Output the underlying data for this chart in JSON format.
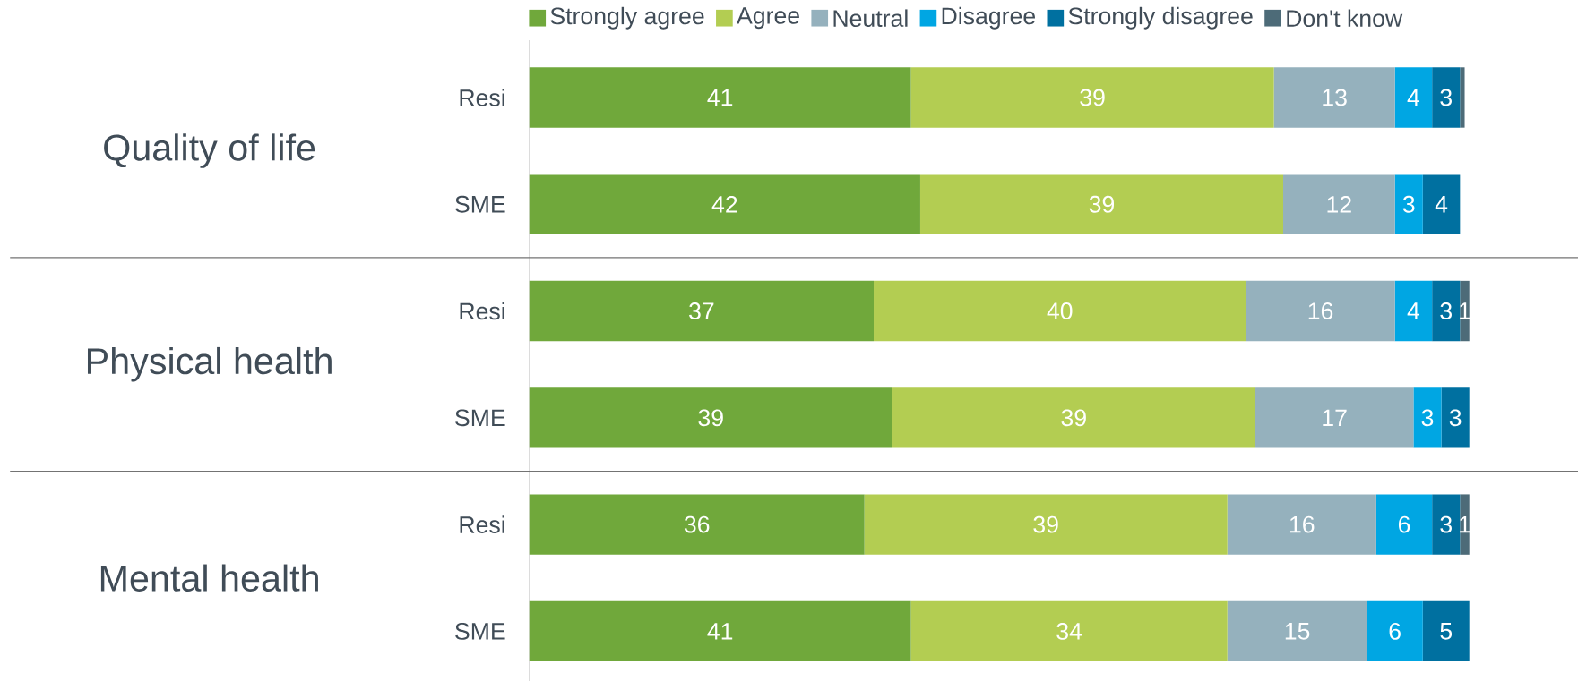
{
  "chart_data": {
    "type": "bar",
    "orientation": "horizontal",
    "stacked": true,
    "legend": "top",
    "tick_labels": "y",
    "categories": [
      "Resi",
      "SME",
      "Resi",
      "SME",
      "Resi",
      "SME"
    ],
    "annotations": [
      "Quality of life",
      "Physical health",
      "Mental health"
    ],
    "series": [
      {
        "name": "Strongly agree",
        "color": "#70a83b",
        "values": [
          41,
          42,
          37,
          39,
          36,
          41
        ],
        "value_labels": [
          "41",
          "42",
          "37",
          "39",
          "36",
          "41"
        ]
      },
      {
        "name": "Agree",
        "color": "#b3cd52",
        "values": [
          39,
          39,
          40,
          39,
          39,
          34
        ],
        "value_labels": [
          "39",
          "39",
          "40",
          "39",
          "39",
          "34"
        ]
      },
      {
        "name": "Neutral",
        "color": "#95b1bd",
        "values": [
          13,
          12,
          16,
          17,
          16,
          15
        ],
        "value_labels": [
          "13",
          "12",
          "16",
          "17",
          "16",
          "15"
        ]
      },
      {
        "name": "Disagree",
        "color": "#00a6e3",
        "values": [
          4,
          3,
          4,
          3,
          6,
          6
        ],
        "value_labels": [
          "4",
          "3",
          "4",
          "3",
          "6",
          "6"
        ]
      },
      {
        "name": "Strongly disagree",
        "color": "#0070a0",
        "values": [
          3,
          4,
          3,
          3,
          3,
          5
        ],
        "value_labels": [
          "3",
          "4",
          "3",
          "3",
          "3",
          "5"
        ]
      },
      {
        "name": "Don't know",
        "color": "#4d6b78",
        "values": [
          0.5,
          null,
          1,
          null,
          1,
          null
        ],
        "value_labels": [
          null,
          null,
          "1",
          null,
          "1",
          null
        ]
      }
    ]
  }
}
